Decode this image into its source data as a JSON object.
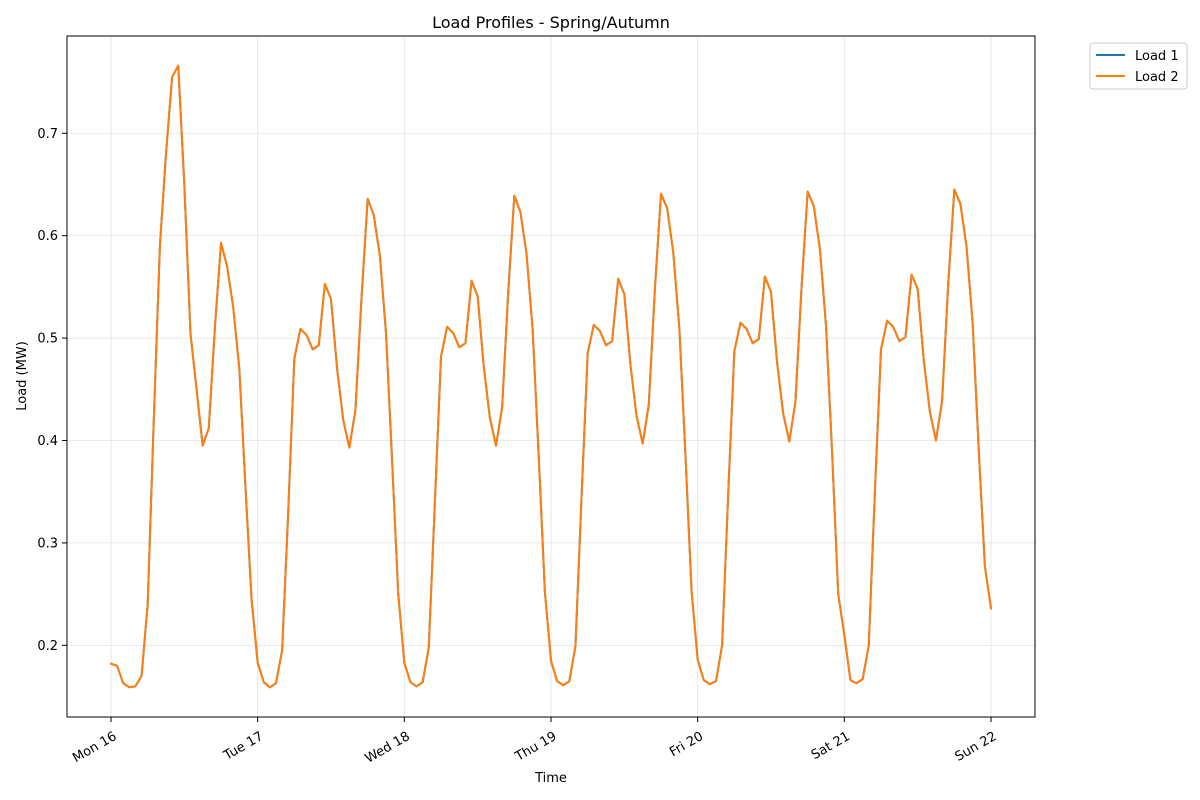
{
  "chart_data": {
    "type": "line",
    "title": "Load Profiles - Spring/Autumn",
    "xlabel": "Time",
    "ylabel": "Load (MW)",
    "x_unit": "hours since Mon 16 00:00 (3-hour steps)",
    "xlim": [
      -7.2,
      151.2
    ],
    "ylim": [
      0.13,
      0.795
    ],
    "x_ticks": [
      {
        "value": 0,
        "label": "Mon 16"
      },
      {
        "value": 24,
        "label": "Tue 17"
      },
      {
        "value": 48,
        "label": "Wed 18"
      },
      {
        "value": 72,
        "label": "Thu 19"
      },
      {
        "value": 96,
        "label": "Fri 20"
      },
      {
        "value": 120,
        "label": "Sat 21"
      },
      {
        "value": 144,
        "label": "Sun 22"
      }
    ],
    "y_ticks": [
      {
        "value": 0.2,
        "label": "0.2"
      },
      {
        "value": 0.3,
        "label": "0.3"
      },
      {
        "value": 0.4,
        "label": "0.4"
      },
      {
        "value": 0.5,
        "label": "0.5"
      },
      {
        "value": 0.6,
        "label": "0.6"
      },
      {
        "value": 0.7,
        "label": "0.7"
      }
    ],
    "grid": true,
    "legend_position": "outside-top-right",
    "x": [
      0,
      1,
      2,
      3,
      4,
      5,
      6,
      7,
      8,
      9,
      10,
      11,
      12,
      13,
      14,
      15,
      16,
      17,
      18,
      19,
      20,
      21,
      22,
      23,
      24,
      25,
      26,
      27,
      28,
      29,
      30,
      31,
      32,
      33,
      34,
      35,
      36,
      37,
      38,
      39,
      40,
      41,
      42,
      43,
      44,
      45,
      46,
      47,
      48,
      49,
      50,
      51,
      52,
      53,
      54,
      55,
      56,
      57,
      58,
      59,
      60,
      61,
      62,
      63,
      64,
      65,
      66,
      67,
      68,
      69,
      70,
      71,
      72,
      73,
      74,
      75,
      76,
      77,
      78,
      79,
      80,
      81,
      82,
      83,
      84,
      85,
      86,
      87,
      88,
      89,
      90,
      91,
      92,
      93,
      94,
      95,
      96,
      97,
      98,
      99,
      100,
      101,
      102,
      103,
      104,
      105,
      106,
      107,
      108,
      109,
      110,
      111,
      112,
      113,
      114,
      115,
      116,
      117,
      118,
      119,
      120,
      121,
      122,
      123,
      124,
      125,
      126,
      127,
      128,
      129,
      130,
      131,
      132,
      133,
      134,
      135,
      136,
      137,
      138,
      139,
      140,
      141,
      142,
      143,
      144
    ],
    "series": [
      {
        "name": "Load 1",
        "color": "#1f77b4",
        "values": [
          0.182,
          0.18,
          0.163,
          0.159,
          0.16,
          0.17,
          0.24,
          0.42,
          0.59,
          0.68,
          0.755,
          0.766,
          0.65,
          0.505,
          0.45,
          0.395,
          0.412,
          0.51,
          0.593,
          0.57,
          0.53,
          0.47,
          0.355,
          0.245,
          0.183,
          0.164,
          0.159,
          0.163,
          0.195,
          0.33,
          0.48,
          0.509,
          0.503,
          0.489,
          0.493,
          0.553,
          0.538,
          0.47,
          0.42,
          0.393,
          0.43,
          0.54,
          0.636,
          0.62,
          0.58,
          0.505,
          0.38,
          0.25,
          0.183,
          0.164,
          0.16,
          0.164,
          0.198,
          0.34,
          0.482,
          0.511,
          0.505,
          0.491,
          0.495,
          0.556,
          0.541,
          0.472,
          0.422,
          0.395,
          0.432,
          0.545,
          0.639,
          0.623,
          0.582,
          0.508,
          0.383,
          0.252,
          0.185,
          0.165,
          0.161,
          0.165,
          0.199,
          0.345,
          0.485,
          0.513,
          0.507,
          0.493,
          0.497,
          0.558,
          0.543,
          0.474,
          0.424,
          0.397,
          0.435,
          0.548,
          0.641,
          0.627,
          0.584,
          0.51,
          0.386,
          0.253,
          0.186,
          0.166,
          0.162,
          0.165,
          0.2,
          0.348,
          0.487,
          0.515,
          0.509,
          0.495,
          0.499,
          0.56,
          0.545,
          0.476,
          0.426,
          0.399,
          0.438,
          0.55,
          0.643,
          0.629,
          0.587,
          0.512,
          0.388,
          0.25,
          0.21,
          0.166,
          0.163,
          0.167,
          0.2,
          0.35,
          0.489,
          0.517,
          0.511,
          0.497,
          0.501,
          0.562,
          0.548,
          0.478,
          0.428,
          0.4,
          0.439,
          0.553,
          0.645,
          0.631,
          0.589,
          0.514,
          0.39,
          0.277,
          0.236
        ]
      },
      {
        "name": "Load 2",
        "color": "#ff7f0e",
        "values": [
          0.182,
          0.18,
          0.163,
          0.159,
          0.16,
          0.17,
          0.24,
          0.42,
          0.59,
          0.68,
          0.755,
          0.766,
          0.65,
          0.505,
          0.45,
          0.395,
          0.412,
          0.51,
          0.593,
          0.57,
          0.53,
          0.47,
          0.355,
          0.245,
          0.183,
          0.164,
          0.159,
          0.163,
          0.195,
          0.33,
          0.48,
          0.509,
          0.503,
          0.489,
          0.493,
          0.553,
          0.538,
          0.47,
          0.42,
          0.393,
          0.43,
          0.54,
          0.636,
          0.62,
          0.58,
          0.505,
          0.38,
          0.25,
          0.183,
          0.164,
          0.16,
          0.164,
          0.198,
          0.34,
          0.482,
          0.511,
          0.505,
          0.491,
          0.495,
          0.556,
          0.541,
          0.472,
          0.422,
          0.395,
          0.432,
          0.545,
          0.639,
          0.623,
          0.582,
          0.508,
          0.383,
          0.252,
          0.185,
          0.165,
          0.161,
          0.165,
          0.199,
          0.345,
          0.485,
          0.513,
          0.507,
          0.493,
          0.497,
          0.558,
          0.543,
          0.474,
          0.424,
          0.397,
          0.435,
          0.548,
          0.641,
          0.627,
          0.584,
          0.51,
          0.386,
          0.253,
          0.186,
          0.166,
          0.162,
          0.165,
          0.2,
          0.348,
          0.487,
          0.515,
          0.509,
          0.495,
          0.499,
          0.56,
          0.545,
          0.476,
          0.426,
          0.399,
          0.438,
          0.55,
          0.643,
          0.629,
          0.587,
          0.512,
          0.388,
          0.25,
          0.21,
          0.166,
          0.163,
          0.167,
          0.2,
          0.35,
          0.489,
          0.517,
          0.511,
          0.497,
          0.501,
          0.562,
          0.548,
          0.478,
          0.428,
          0.4,
          0.439,
          0.553,
          0.645,
          0.631,
          0.589,
          0.514,
          0.39,
          0.277,
          0.236
        ]
      }
    ]
  }
}
